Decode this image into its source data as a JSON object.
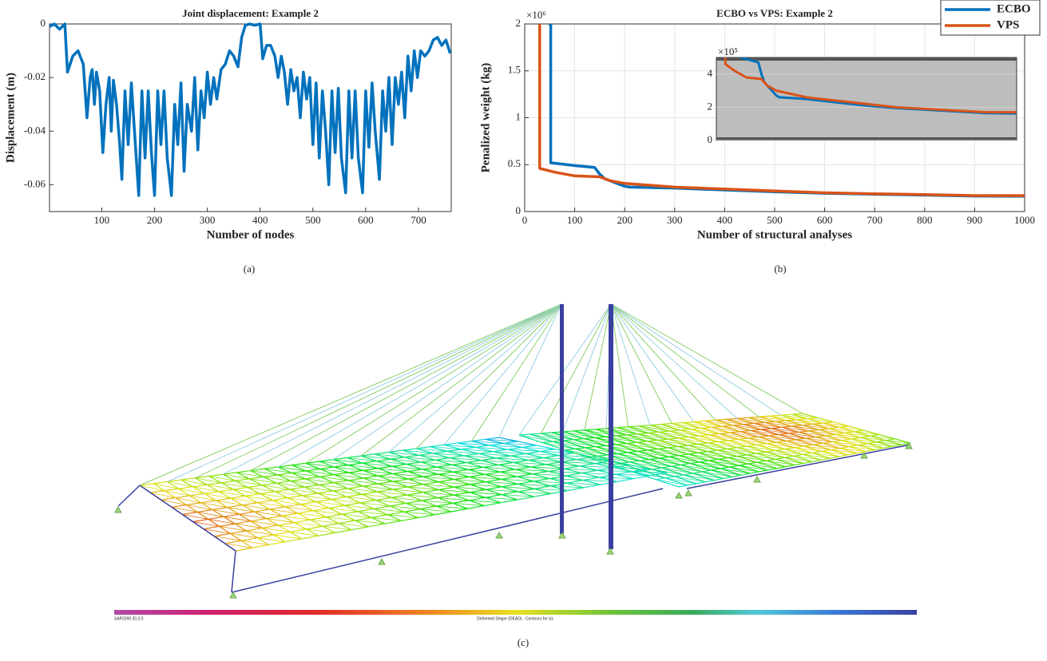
{
  "chart_data": [
    {
      "type": "line",
      "title": "Joint displacement: Example 2",
      "xlabel": "Number of nodes",
      "ylabel": "Displacement (m)",
      "x": [
        1,
        10,
        20,
        30,
        35,
        45,
        55,
        65,
        72,
        78,
        82,
        86,
        90,
        96,
        102,
        108,
        114,
        118,
        122,
        128,
        134,
        138,
        144,
        150,
        156,
        162,
        170,
        176,
        182,
        188,
        194,
        200,
        206,
        212,
        218,
        224,
        232,
        238,
        244,
        250,
        256,
        262,
        270,
        276,
        282,
        288,
        294,
        300,
        306,
        312,
        318,
        326,
        334,
        342,
        350,
        358,
        365,
        372,
        380,
        390,
        400,
        405,
        412,
        420,
        428,
        434,
        440,
        446,
        452,
        458,
        464,
        470,
        476,
        482,
        488,
        494,
        500,
        506,
        512,
        518,
        524,
        530,
        536,
        542,
        548,
        554,
        562,
        568,
        574,
        580,
        586,
        594,
        600,
        606,
        612,
        618,
        626,
        632,
        638,
        644,
        650,
        656,
        662,
        668,
        674,
        680,
        686,
        692,
        698,
        704,
        712,
        720,
        728,
        736,
        744,
        752,
        760
      ],
      "values": [
        -0.001,
        0,
        -0.002,
        0,
        -0.018,
        -0.012,
        -0.01,
        -0.015,
        -0.035,
        -0.02,
        -0.017,
        -0.03,
        -0.018,
        -0.025,
        -0.048,
        -0.03,
        -0.02,
        -0.04,
        -0.021,
        -0.03,
        -0.045,
        -0.058,
        -0.025,
        -0.045,
        -0.022,
        -0.04,
        -0.064,
        -0.025,
        -0.05,
        -0.025,
        -0.048,
        -0.064,
        -0.025,
        -0.045,
        -0.025,
        -0.05,
        -0.064,
        -0.03,
        -0.045,
        -0.022,
        -0.055,
        -0.03,
        -0.04,
        -0.02,
        -0.047,
        -0.025,
        -0.035,
        -0.018,
        -0.03,
        -0.02,
        -0.028,
        -0.017,
        -0.015,
        -0.01,
        -0.012,
        -0.016,
        -0.005,
        -0.0005,
        0,
        -0.0005,
        0,
        -0.013,
        -0.008,
        -0.008,
        -0.012,
        -0.02,
        -0.012,
        -0.018,
        -0.03,
        -0.017,
        -0.025,
        -0.02,
        -0.035,
        -0.018,
        -0.028,
        -0.02,
        -0.045,
        -0.022,
        -0.05,
        -0.025,
        -0.04,
        -0.06,
        -0.025,
        -0.048,
        -0.024,
        -0.05,
        -0.063,
        -0.025,
        -0.05,
        -0.025,
        -0.05,
        -0.063,
        -0.025,
        -0.046,
        -0.022,
        -0.04,
        -0.058,
        -0.025,
        -0.04,
        -0.02,
        -0.045,
        -0.02,
        -0.03,
        -0.018,
        -0.035,
        -0.012,
        -0.025,
        -0.01,
        -0.02,
        -0.01,
        -0.012,
        -0.01,
        -0.006,
        -0.005,
        -0.008,
        -0.006,
        -0.011
      ],
      "color": "#0072bd",
      "xlim": [
        1,
        762
      ],
      "ylim": [
        -0.07,
        0
      ],
      "xticks": [
        100,
        200,
        300,
        400,
        500,
        600,
        700
      ],
      "yticks": [
        -0.06,
        -0.04,
        -0.02,
        0
      ],
      "grid": false
    },
    {
      "type": "line",
      "title": "ECBO vs VPS: Example 2",
      "xlabel": "Number of structural analyses",
      "ylabel": "Penalized weight (kg)",
      "y_multiplier": "×10⁶",
      "series": [
        {
          "name": "ECBO",
          "color": "#0072bd",
          "x": [
            48,
            52,
            52,
            100,
            140,
            150,
            160,
            200,
            210,
            300,
            400,
            500,
            600,
            700,
            800,
            900,
            1000
          ],
          "values": [
            2000000,
            2000000,
            520000,
            490000,
            470000,
            400000,
            350000,
            270000,
            260000,
            250000,
            230000,
            210000,
            195000,
            185000,
            175000,
            165000,
            163000
          ]
        },
        {
          "name": "VPS",
          "color": "#d95319",
          "x": [
            30,
            30,
            60,
            100,
            150,
            170,
            200,
            300,
            400,
            500,
            600,
            700,
            800,
            900,
            1000
          ],
          "values": [
            2000000,
            460000,
            420000,
            380000,
            370000,
            330000,
            300000,
            260000,
            240000,
            220000,
            200000,
            190000,
            180000,
            170000,
            170000
          ]
        }
      ],
      "xlim": [
        0,
        1000
      ],
      "ylim": [
        0,
        2000000
      ],
      "xticks": [
        0,
        100,
        200,
        300,
        400,
        500,
        600,
        700,
        800,
        900,
        1000
      ],
      "yticks": [
        0,
        {
          "value": 500000,
          "label": "0.5"
        },
        {
          "value": 1000000,
          "label": "1"
        },
        {
          "value": 1500000,
          "label": "1.5"
        },
        {
          "value": 2000000,
          "label": "2"
        }
      ],
      "grid": true,
      "legend": "top-right",
      "inset": {
        "ylim": [
          0,
          500000
        ],
        "yticks": [
          0,
          {
            "value": 200000,
            "label": "2"
          },
          {
            "value": 400000,
            "label": "4"
          }
        ],
        "y_multiplier": "×10⁵"
      }
    }
  ],
  "captions": [
    "(a)",
    "(b)",
    "(c)"
  ],
  "figure_c": {
    "colorbar_left_text": "SAP2000 20.2.0",
    "colorbar_center_text": "Deformed Shape (DEAD) - Contours for Uz"
  }
}
